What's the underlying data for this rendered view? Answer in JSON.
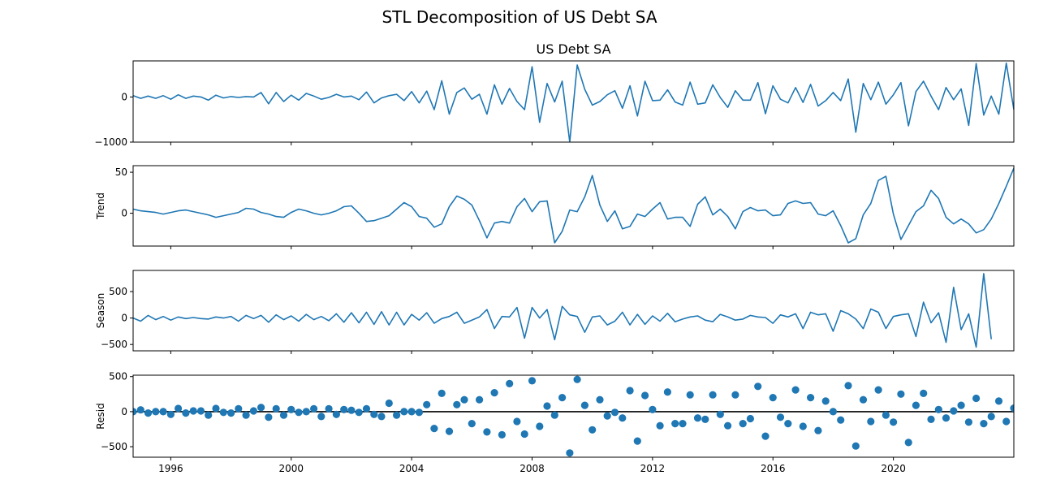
{
  "figure": {
    "suptitle": "STL Decomposition of US Debt SA",
    "line_color": "#1f77b4"
  },
  "chart_data": [
    {
      "type": "line",
      "title": "US Debt SA",
      "ylabel": "",
      "ylim": [
        -1000,
        800
      ],
      "yticks": [
        -1000,
        0
      ],
      "ytick_labels": [
        "−1000",
        "0"
      ],
      "xlim": [
        1994.75,
        2024.0
      ],
      "grid": false,
      "x_start": 1994.75,
      "x_step": 0.25,
      "values": [
        30,
        -30,
        20,
        -30,
        30,
        -50,
        50,
        -30,
        20,
        0,
        -70,
        40,
        -20,
        10,
        -10,
        10,
        0,
        100,
        -150,
        100,
        -100,
        40,
        -70,
        80,
        20,
        -50,
        -10,
        60,
        0,
        20,
        -60,
        110,
        -130,
        -20,
        30,
        60,
        -80,
        120,
        -130,
        130,
        -280,
        360,
        -380,
        100,
        200,
        -50,
        60,
        -380,
        270,
        -160,
        190,
        -100,
        -280,
        670,
        -560,
        300,
        -110,
        350,
        -1000,
        710,
        170,
        -180,
        -100,
        50,
        140,
        -250,
        250,
        -420,
        350,
        -80,
        -70,
        160,
        -110,
        -180,
        330,
        -160,
        -130,
        270,
        -10,
        -230,
        140,
        -70,
        -70,
        320,
        -370,
        250,
        -50,
        -130,
        210,
        -120,
        280,
        -200,
        -80,
        100,
        -80,
        400,
        -780,
        300,
        -60,
        330,
        -160,
        50,
        320,
        -640,
        120,
        350,
        20,
        -280,
        210,
        -60,
        180,
        -630,
        740,
        -400,
        20,
        -380,
        750,
        -280
      ]
    },
    {
      "type": "line",
      "title": "",
      "ylabel": "Trend",
      "ylim": [
        -40,
        58
      ],
      "yticks": [
        0,
        50
      ],
      "ytick_labels": [
        "0",
        "50"
      ],
      "xlim": [
        1994.75,
        2024.0
      ],
      "grid": false,
      "x_start": 1994.75,
      "x_step": 0.25,
      "values": [
        5,
        3,
        2,
        1,
        -1,
        1,
        3,
        4,
        2,
        0,
        -2,
        -5,
        -3,
        -1,
        1,
        6,
        5,
        1,
        -1,
        -4,
        -5,
        1,
        5,
        3,
        0,
        -2,
        0,
        3,
        8,
        9,
        0,
        -10,
        -9,
        -6,
        -3,
        5,
        13,
        8,
        -4,
        -6,
        -17,
        -13,
        8,
        21,
        17,
        10,
        -9,
        -30,
        -12,
        -10,
        -12,
        8,
        18,
        2,
        14,
        15,
        -36,
        -22,
        4,
        2,
        20,
        46,
        10,
        -10,
        3,
        -19,
        -16,
        -1,
        -4,
        5,
        13,
        -7,
        -5,
        -5,
        -16,
        11,
        20,
        -2,
        5,
        -4,
        -19,
        2,
        7,
        3,
        4,
        -3,
        -2,
        12,
        15,
        12,
        13,
        -1,
        -3,
        3,
        -15,
        -36,
        -31,
        -2,
        12,
        40,
        45,
        -1,
        -32,
        -15,
        2,
        9,
        28,
        18,
        -5,
        -13,
        -7,
        -13,
        -24,
        -20,
        -7,
        12,
        33,
        55
      ]
    },
    {
      "type": "line",
      "title": "",
      "ylabel": "Season",
      "ylim": [
        -620,
        900
      ],
      "yticks": [
        -500,
        0,
        500
      ],
      "ytick_labels": [
        "−500",
        "0",
        "500"
      ],
      "xlim": [
        1994.75,
        2024.0
      ],
      "grid": false,
      "x_start": 1994.75,
      "x_step": 0.25,
      "values": [
        0,
        -60,
        50,
        -30,
        30,
        -40,
        20,
        -10,
        10,
        -10,
        -20,
        20,
        0,
        30,
        -60,
        50,
        -10,
        50,
        -80,
        60,
        -30,
        40,
        -60,
        70,
        -30,
        30,
        -50,
        80,
        -80,
        100,
        -90,
        110,
        -120,
        120,
        -130,
        110,
        -130,
        70,
        -40,
        100,
        -100,
        -10,
        30,
        110,
        -100,
        -40,
        20,
        160,
        -200,
        30,
        20,
        200,
        -380,
        200,
        0,
        160,
        -410,
        220,
        60,
        30,
        -270,
        20,
        40,
        -130,
        -60,
        110,
        -130,
        70,
        -120,
        40,
        -60,
        90,
        -70,
        -20,
        20,
        40,
        -40,
        -70,
        70,
        20,
        -40,
        -20,
        50,
        20,
        10,
        -100,
        60,
        20,
        80,
        -200,
        110,
        60,
        80,
        -250,
        140,
        80,
        -20,
        -200,
        170,
        110,
        -200,
        30,
        60,
        80,
        -350,
        300,
        -90,
        100,
        -460,
        580,
        -220,
        80,
        -550,
        840,
        -400
      ]
    },
    {
      "type": "scatter",
      "title": "",
      "ylabel": "Resid",
      "ylim": [
        -650,
        520
      ],
      "yticks": [
        -500,
        0,
        500
      ],
      "ytick_labels": [
        "−500",
        "0",
        "500"
      ],
      "xlim": [
        1994.75,
        2024.0
      ],
      "xticks": [
        1996,
        2000,
        2004,
        2008,
        2012,
        2016,
        2020
      ],
      "xtick_labels": [
        "1996",
        "2000",
        "2004",
        "2008",
        "2012",
        "2016",
        "2020"
      ],
      "grid": false,
      "zero_line": 0,
      "x_start": 1994.75,
      "x_step": 0.25,
      "values": [
        0,
        25,
        -20,
        0,
        0,
        -40,
        45,
        -20,
        10,
        10,
        -50,
        45,
        -10,
        -20,
        40,
        -50,
        10,
        60,
        -80,
        40,
        -50,
        30,
        -10,
        0,
        40,
        -70,
        40,
        -40,
        30,
        20,
        -10,
        40,
        -40,
        -70,
        120,
        -50,
        0,
        0,
        -10,
        100,
        -240,
        260,
        -280,
        100,
        170,
        -170,
        170,
        -290,
        270,
        -330,
        400,
        -140,
        -320,
        440,
        -210,
        80,
        -50,
        200,
        -590,
        460,
        90,
        -260,
        170,
        -60,
        -10,
        -90,
        300,
        -420,
        230,
        30,
        -200,
        280,
        -170,
        -170,
        240,
        -90,
        -110,
        240,
        -40,
        -200,
        240,
        -170,
        -100,
        360,
        -350,
        200,
        -80,
        -170,
        310,
        -210,
        200,
        -270,
        150,
        0,
        -120,
        370,
        -490,
        170,
        -140,
        310,
        -50,
        -150,
        250,
        -440,
        90,
        260,
        -110,
        30,
        -90,
        10,
        90,
        -150,
        190,
        -170,
        -70,
        150,
        -140,
        50
      ]
    }
  ]
}
